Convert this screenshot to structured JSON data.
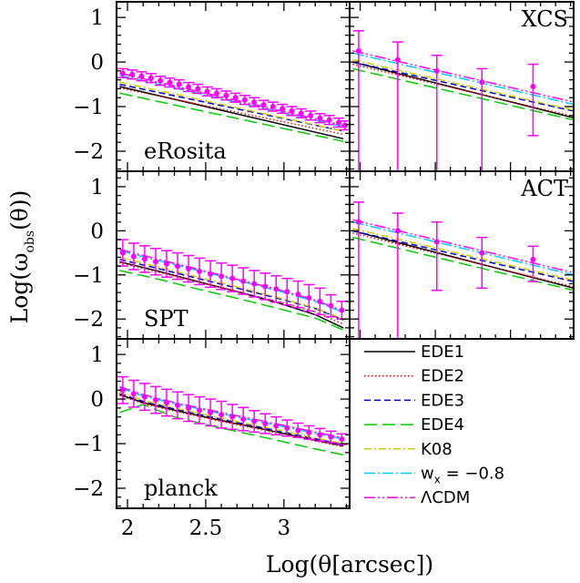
{
  "chart_data": {
    "type": "line",
    "xlabel": "Log(θ[arcsec])",
    "ylabel": "Log(ω_obs(θ))",
    "xlim": [
      1.93,
      3.42
    ],
    "ylim": [
      -2.45,
      1.35
    ],
    "xticks": [
      "2",
      "2.5",
      "3"
    ],
    "xtick_values": [
      2,
      2.5,
      3
    ],
    "yticks": [
      "1",
      "0",
      "−1",
      "−2"
    ],
    "ytick_values": [
      1,
      0,
      -1,
      -2
    ],
    "grid": false,
    "legend_position": "bottom-right",
    "series_styles": [
      {
        "key": "EDE1",
        "label": "EDE1",
        "color": "#000000",
        "dash": ""
      },
      {
        "key": "EDE2",
        "label": "EDE2",
        "color": "#ff0000",
        "dash": "1.5,2.5"
      },
      {
        "key": "EDE3",
        "label": "EDE3",
        "color": "#0000cc",
        "dash": "7,4"
      },
      {
        "key": "EDE4",
        "label": "EDE4",
        "color": "#00cc00",
        "dash": "14,6"
      },
      {
        "key": "K08",
        "label": "K08",
        "color": "#cccc00",
        "dash": "8,3,2,3"
      },
      {
        "key": "wx",
        "label": "w_x = −0.8",
        "color": "#00ccff",
        "dash": "12,3,2,3"
      },
      {
        "key": "LCDM",
        "label": "ΛCDM",
        "color": "#ff00ff",
        "dash": "12,3,2,3,2,3"
      }
    ],
    "panels": [
      {
        "label": "eRosita",
        "label_pos": "bottom-left",
        "line_x": [
          1.95,
          3.38
        ],
        "lines": {
          "EDE1": [
            -0.55,
            -1.72
          ],
          "EDE2": [
            -0.58,
            -1.62
          ],
          "EDE3": [
            -0.5,
            -1.55
          ],
          "EDE4": [
            -0.7,
            -1.78
          ],
          "K08": [
            -0.45,
            -1.55
          ],
          "wx": [
            -0.3,
            -1.45
          ],
          "LCDM": [
            -0.25,
            -1.42
          ]
        },
        "points": {
          "x": [
            1.97,
            2.03,
            2.09,
            2.15,
            2.21,
            2.27,
            2.33,
            2.39,
            2.45,
            2.51,
            2.57,
            2.63,
            2.69,
            2.75,
            2.81,
            2.87,
            2.93,
            2.99,
            3.05,
            3.11,
            3.17,
            3.23,
            3.29,
            3.35,
            3.39
          ],
          "y": [
            -0.25,
            -0.28,
            -0.32,
            -0.36,
            -0.42,
            -0.46,
            -0.5,
            -0.56,
            -0.6,
            -0.66,
            -0.7,
            -0.75,
            -0.8,
            -0.85,
            -0.9,
            -0.96,
            -1.0,
            -1.05,
            -1.1,
            -1.15,
            -1.2,
            -1.26,
            -1.3,
            -1.36,
            -1.42
          ],
          "err": [
            0.1,
            0.1,
            0.1,
            0.1,
            0.1,
            0.1,
            0.1,
            0.1,
            0.1,
            0.1,
            0.1,
            0.1,
            0.1,
            0.1,
            0.1,
            0.1,
            0.1,
            0.1,
            0.1,
            0.1,
            0.1,
            0.1,
            0.1,
            0.1,
            0.1
          ]
        }
      },
      {
        "label": "XCS",
        "label_pos": "top-right",
        "line_x": [
          1.95,
          3.42
        ],
        "lines": {
          "EDE1": [
            0.0,
            -1.25
          ],
          "EDE2": [
            -0.05,
            -1.22
          ],
          "EDE3": [
            0.0,
            -1.1
          ],
          "EDE4": [
            -0.15,
            -1.3
          ],
          "K08": [
            0.05,
            -1.08
          ],
          "wx": [
            0.2,
            -0.95
          ],
          "LCDM": [
            0.25,
            -0.9
          ]
        },
        "points": {
          "x": [
            1.99,
            2.25,
            2.51,
            2.81,
            3.15
          ],
          "y": [
            0.25,
            0.05,
            -0.2,
            -0.45,
            -0.55
          ],
          "err_up": [
            0.45,
            0.4,
            0.35,
            0.3,
            0.5
          ],
          "err_down": [
            2.7,
            2.5,
            2.25,
            2.0,
            1.1
          ]
        }
      },
      {
        "label": "SPT",
        "label_pos": "bottom-left",
        "line_x": [
          1.95,
          2.2,
          2.45,
          2.7,
          2.95,
          3.2,
          3.38
        ],
        "lines": {
          "EDE1": [
            -0.7,
            -0.92,
            -1.15,
            -1.38,
            -1.62,
            -1.9,
            -2.2
          ],
          "EDE2": [
            -0.72,
            -0.94,
            -1.16,
            -1.37,
            -1.59,
            -1.84,
            -2.12
          ],
          "EDE3": [
            -0.65,
            -0.86,
            -1.08,
            -1.3,
            -1.52,
            -1.76,
            -2.02
          ],
          "EDE4": [
            -0.9,
            -1.1,
            -1.32,
            -1.53,
            -1.75,
            -1.98,
            -2.25
          ],
          "K08": [
            -0.6,
            -0.82,
            -1.05,
            -1.27,
            -1.5,
            -1.75,
            -2.0
          ],
          "wx": [
            -0.45,
            -0.68,
            -0.9,
            -1.12,
            -1.35,
            -1.6,
            -1.85
          ],
          "LCDM": [
            -0.42,
            -0.65,
            -0.87,
            -1.1,
            -1.32,
            -1.57,
            -1.82
          ]
        },
        "points": {
          "x": [
            1.97,
            2.04,
            2.11,
            2.18,
            2.25,
            2.32,
            2.39,
            2.46,
            2.53,
            2.6,
            2.67,
            2.74,
            2.81,
            2.88,
            2.95,
            3.02,
            3.09,
            3.16,
            3.23,
            3.3,
            3.37
          ],
          "y": [
            -0.5,
            -0.58,
            -0.64,
            -0.7,
            -0.75,
            -0.8,
            -0.86,
            -0.92,
            -0.98,
            -1.03,
            -1.08,
            -1.14,
            -1.2,
            -1.26,
            -1.32,
            -1.38,
            -1.44,
            -1.52,
            -1.6,
            -1.7,
            -1.8
          ],
          "err": [
            0.3,
            0.3,
            0.3,
            0.3,
            0.3,
            0.3,
            0.3,
            0.3,
            0.3,
            0.3,
            0.3,
            0.3,
            0.3,
            0.3,
            0.3,
            0.3,
            0.3,
            0.3,
            0.3,
            0.25,
            0.2
          ]
        }
      },
      {
        "label": "ACT",
        "label_pos": "top-right",
        "line_x": [
          1.95,
          3.42
        ],
        "lines": {
          "EDE1": [
            0.0,
            -1.3
          ],
          "EDE2": [
            -0.05,
            -1.27
          ],
          "EDE3": [
            0.0,
            -1.15
          ],
          "EDE4": [
            -0.15,
            -1.35
          ],
          "K08": [
            0.05,
            -1.12
          ],
          "wx": [
            0.2,
            -1.0
          ],
          "LCDM": [
            0.25,
            -0.95
          ]
        },
        "points": {
          "x": [
            1.99,
            2.25,
            2.51,
            2.81,
            3.15
          ],
          "y": [
            0.2,
            0.0,
            -0.25,
            -0.5,
            -0.65
          ],
          "err_up": [
            0.45,
            0.4,
            0.45,
            0.35,
            0.3
          ],
          "err_down": [
            2.7,
            2.5,
            1.1,
            0.8,
            0.5
          ]
        }
      },
      {
        "label": "planck",
        "label_pos": "bottom-left",
        "line_x": [
          1.95,
          2.1,
          2.3,
          2.6,
          2.9,
          3.2,
          3.38
        ],
        "lines": {
          "EDE1": [
            0.1,
            -0.08,
            -0.25,
            -0.48,
            -0.7,
            -0.92,
            -1.05
          ],
          "EDE2": [
            0.08,
            -0.1,
            -0.27,
            -0.5,
            -0.72,
            -0.94,
            -1.07
          ],
          "EDE3": [
            0.12,
            -0.05,
            -0.22,
            -0.45,
            -0.67,
            -0.89,
            -1.02
          ],
          "EDE4": [
            -0.3,
            -0.12,
            -0.4,
            -0.65,
            -0.88,
            -1.12,
            -1.25
          ],
          "K08": [
            0.15,
            -0.03,
            -0.2,
            -0.43,
            -0.65,
            -0.87,
            -1.0
          ],
          "wx": [
            0.25,
            0.07,
            -0.1,
            -0.33,
            -0.55,
            -0.77,
            -0.9
          ],
          "LCDM": [
            0.28,
            0.1,
            -0.08,
            -0.3,
            -0.52,
            -0.74,
            -0.87
          ]
        },
        "points": {
          "x": [
            1.97,
            2.04,
            2.11,
            2.18,
            2.25,
            2.32,
            2.39,
            2.46,
            2.53,
            2.6,
            2.67,
            2.74,
            2.81,
            2.88,
            2.95,
            3.02,
            3.09,
            3.16,
            3.23,
            3.3,
            3.37
          ],
          "y": [
            0.2,
            0.12,
            0.05,
            -0.02,
            -0.08,
            -0.14,
            -0.2,
            -0.25,
            -0.3,
            -0.35,
            -0.4,
            -0.45,
            -0.5,
            -0.55,
            -0.6,
            -0.65,
            -0.7,
            -0.75,
            -0.8,
            -0.85,
            -0.9
          ],
          "err": [
            0.3,
            0.3,
            0.3,
            0.3,
            0.3,
            0.3,
            0.3,
            0.3,
            0.3,
            0.3,
            0.28,
            0.26,
            0.24,
            0.22,
            0.2,
            0.18,
            0.16,
            0.15,
            0.14,
            0.13,
            0.12
          ]
        }
      }
    ]
  }
}
